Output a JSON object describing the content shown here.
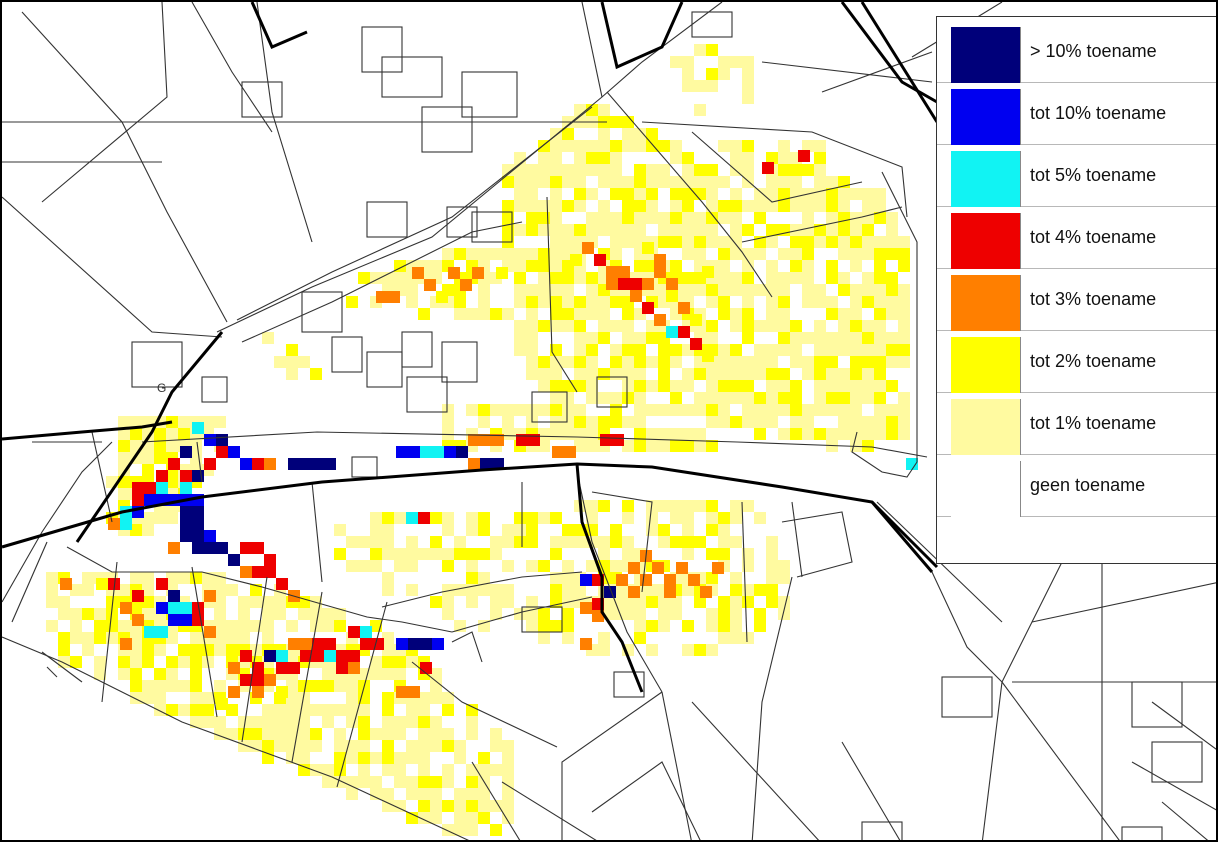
{
  "legend": {
    "items": [
      {
        "label": "> 10% toename",
        "color": "#00007a"
      },
      {
        "label": "tot 10% toename",
        "color": "#0000f0"
      },
      {
        "label": "tot 5% toename",
        "color": "#11f3f3"
      },
      {
        "label": "tot 4% toename",
        "color": "#ee0000"
      },
      {
        "label": "tot 3% toename",
        "color": "#ff7f00"
      },
      {
        "label": "tot 2% toename",
        "color": "#ffff00"
      },
      {
        "label": "tot 1% toename",
        "color": "#fffaa0"
      },
      {
        "label": "geen toename",
        "color": "#ffffff"
      }
    ]
  },
  "map": {
    "map_label": "G"
  }
}
